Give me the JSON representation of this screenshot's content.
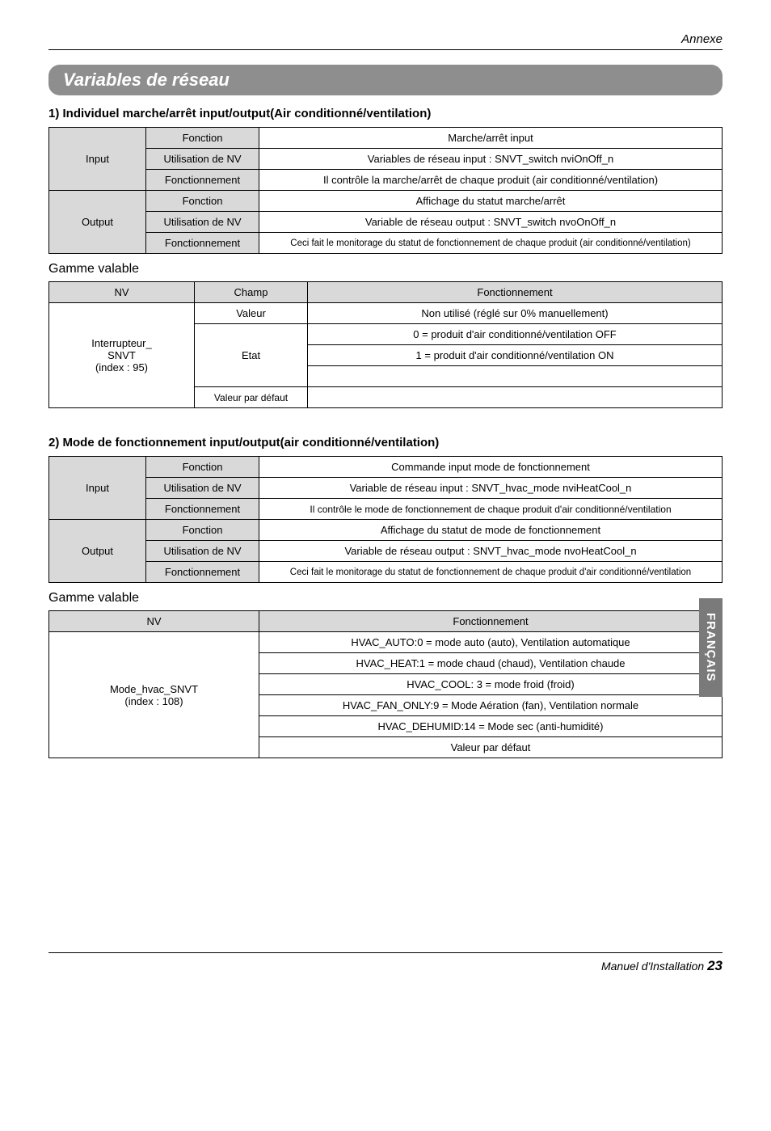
{
  "header": {
    "annexe": "Annexe"
  },
  "main_title": "Variables de réseau",
  "side_tab": "FRANÇAIS",
  "footer": {
    "manual": "Manuel d'Installation",
    "page": "23"
  },
  "section1": {
    "title": "1) Individuel marche/arrêt input/output(Air conditionné/ventilation)",
    "io_table": {
      "col_labels": {
        "fonction": "Fonction",
        "util": "Utilisation de NV",
        "fct": "Fonctionnement"
      },
      "rows": [
        {
          "group": "Input",
          "fonction": "Marche/arrêt input",
          "util": "Variables de réseau input : SNVT_switch nviOnOff_n",
          "fct": "Il contrôle la marche/arrêt de chaque produit (air conditionné/ventilation)"
        },
        {
          "group": "Output",
          "fonction": "Affichage du statut marche/arrêt",
          "util": "Variable de réseau output : SNVT_switch nvoOnOff_n",
          "fct": "Ceci fait le monitorage du statut de fonctionnement de chaque produit (air conditionné/ventilation)"
        }
      ]
    },
    "gamme": {
      "title": "Gamme valable",
      "headers": {
        "nv": "NV",
        "champ": "Champ",
        "fct": "Fonctionnement"
      },
      "nv_label": "Interrupteur_\nSNVT\n(index : 95)",
      "rows": {
        "valeur": {
          "champ": "Valeur",
          "fct": "Non utilisé (réglé sur 0% manuellement)"
        },
        "etat0": "0 = produit d'air conditionné/ventilation OFF",
        "etat1": "1 = produit d'air conditionné/ventilation ON",
        "etat_label": "Etat",
        "etat_blank": "",
        "defaut": {
          "champ": "Valeur par défaut",
          "fct": ""
        }
      }
    }
  },
  "section2": {
    "title": "2) Mode de fonctionnement input/output(air conditionné/ventilation)",
    "io_table": {
      "col_labels": {
        "fonction": "Fonction",
        "util": "Utilisation de NV",
        "fct": "Fonctionnement"
      },
      "rows": [
        {
          "group": "Input",
          "fonction": "Commande input mode de fonctionnement",
          "util": "Variable de réseau input : SNVT_hvac_mode nviHeatCool_n",
          "fct": "Il contrôle le mode de fonctionnement de chaque produit d'air conditionné/ventilation"
        },
        {
          "group": "Output",
          "fonction": "Affichage du statut de mode de fonctionnement",
          "util": "Variable de réseau output : SNVT_hvac_mode nvoHeatCool_n",
          "fct": "Ceci fait le monitorage du statut de fonctionnement de chaque produit d'air conditionné/ventilation"
        }
      ]
    },
    "gamme": {
      "title": "Gamme valable",
      "headers": {
        "nv": "NV",
        "fct": "Fonctionnement"
      },
      "nv_label": "Mode_hvac_SNVT\n(index : 108)",
      "rows": [
        "HVAC_AUTO:0 = mode auto (auto), Ventilation automatique",
        "HVAC_HEAT:1 = mode chaud (chaud), Ventilation chaude",
        "HVAC_COOL: 3 = mode froid (froid)",
        "HVAC_FAN_ONLY:9 = Mode Aération (fan), Ventilation normale",
        "HVAC_DEHUMID:14 = Mode sec (anti-humidité)",
        "Valeur par défaut"
      ]
    }
  }
}
